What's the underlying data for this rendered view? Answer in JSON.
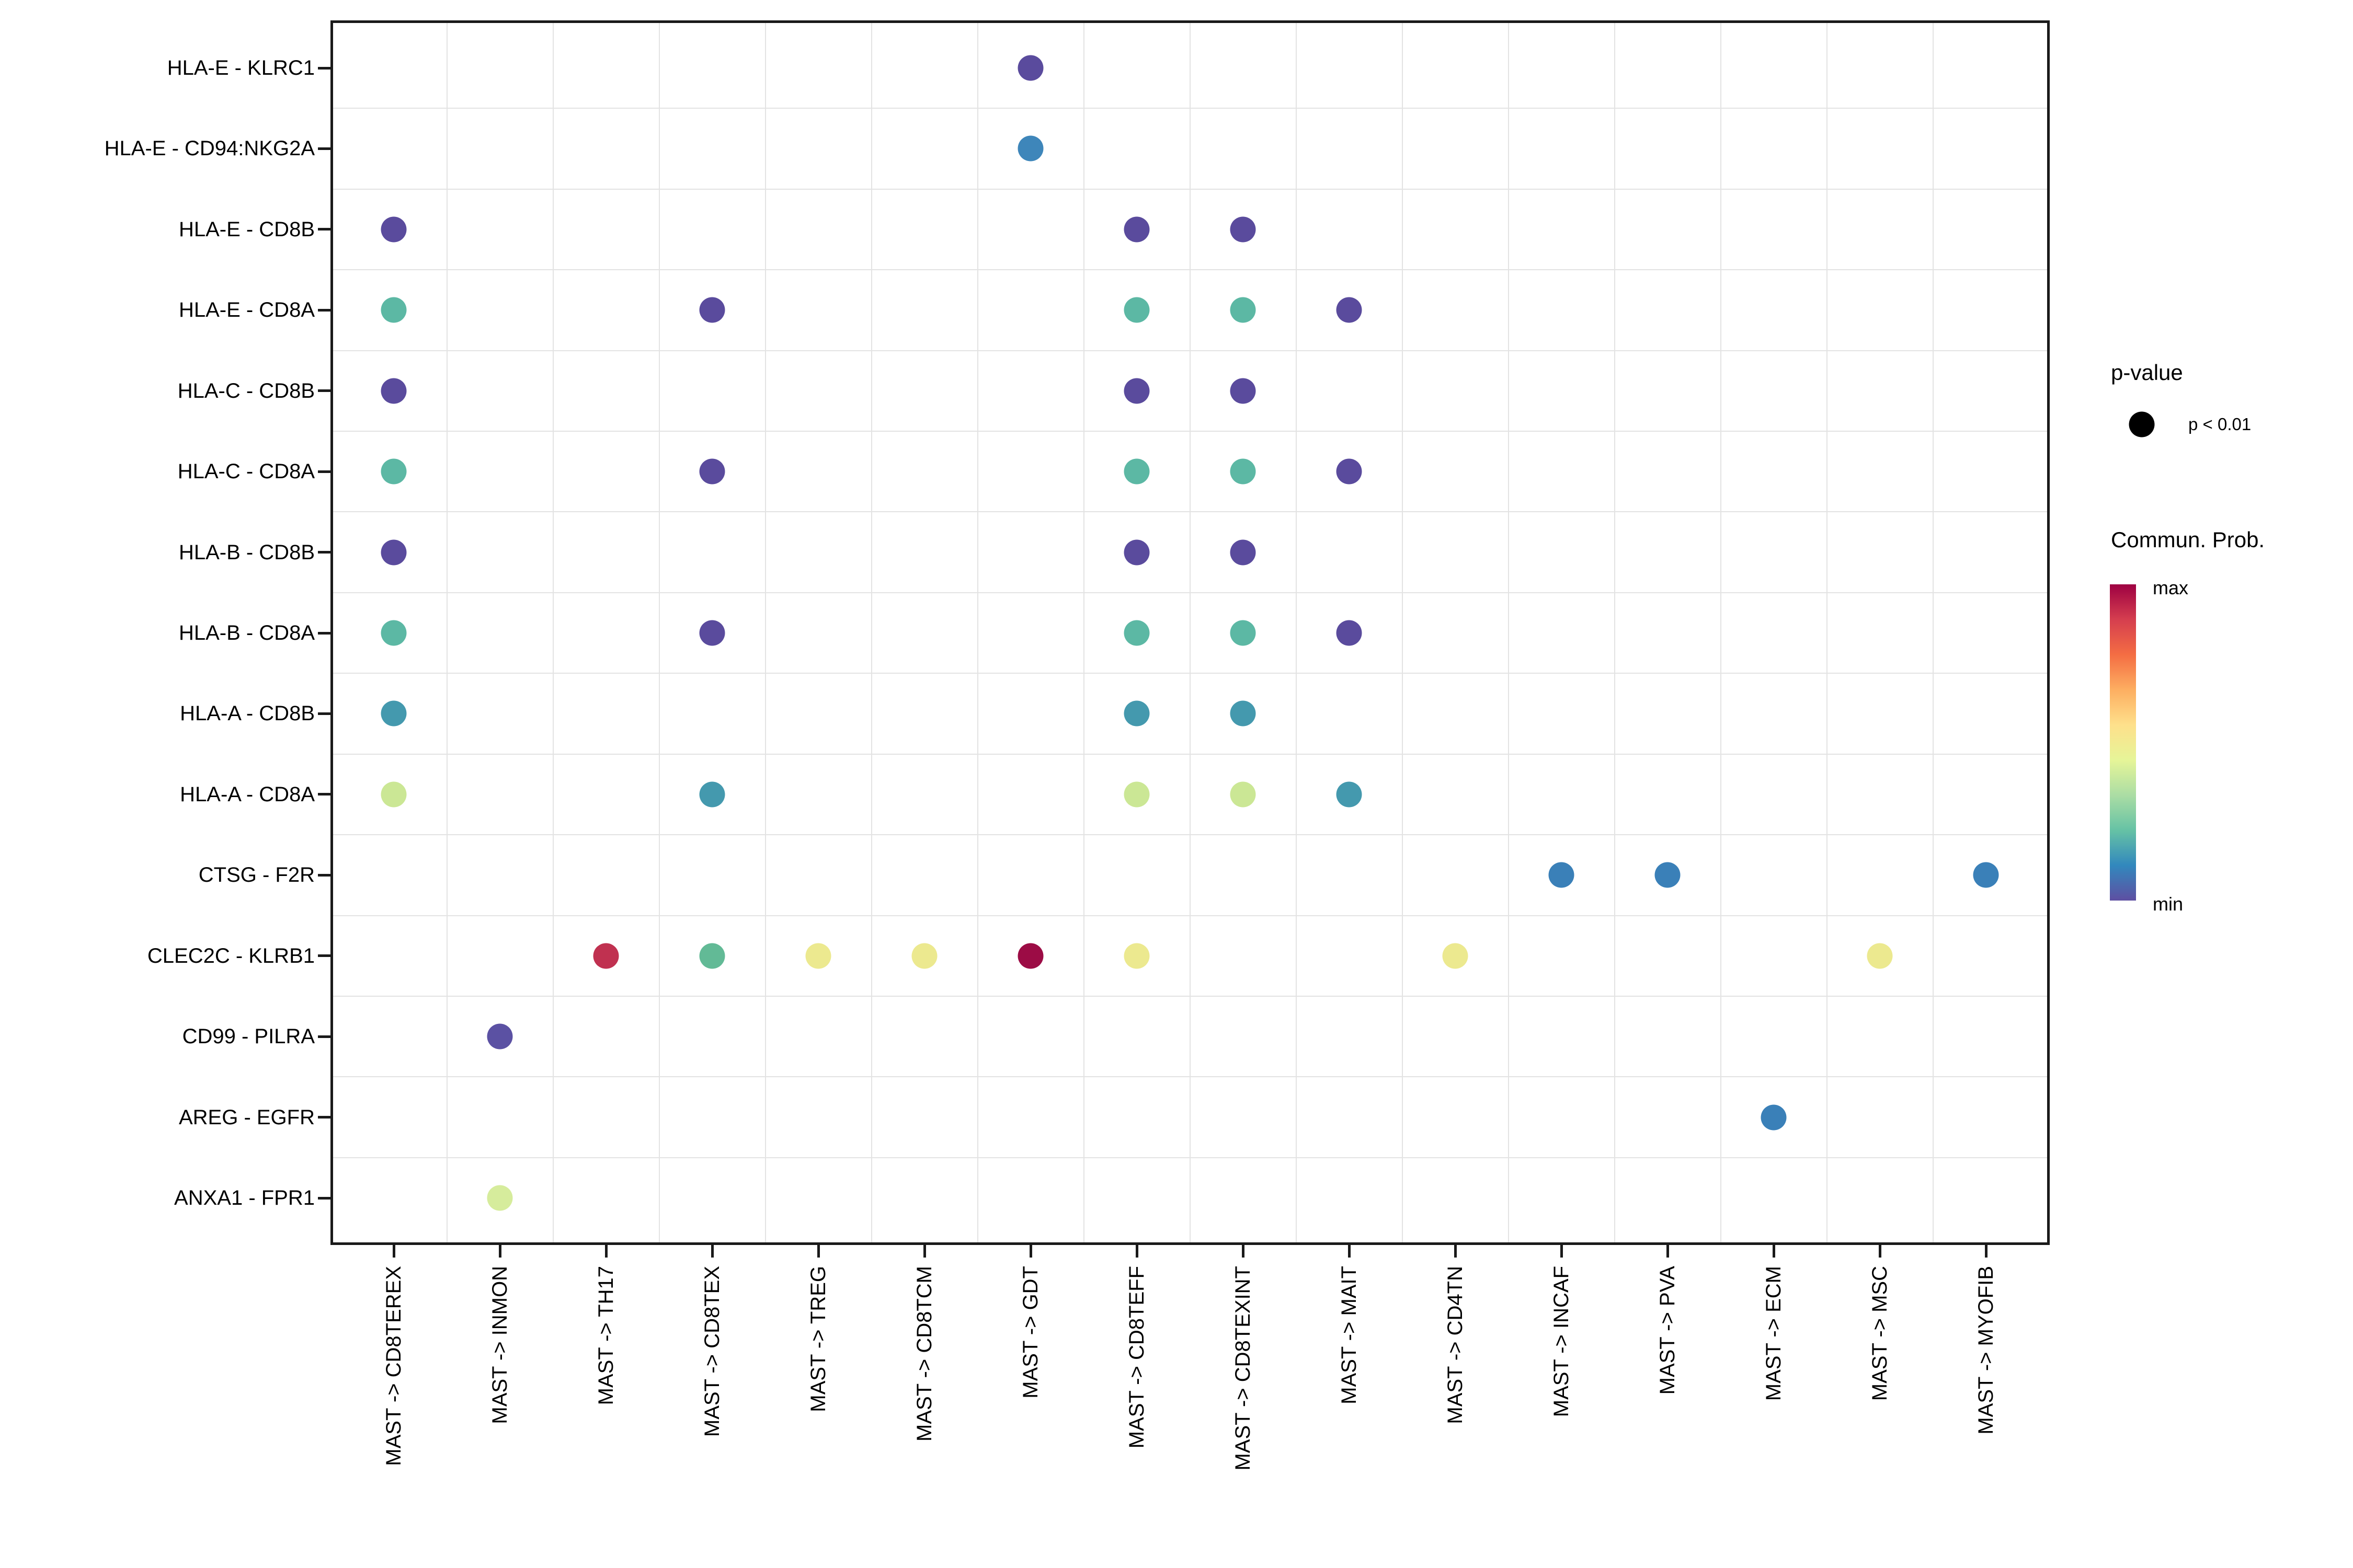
{
  "chart_data": {
    "type": "scatter",
    "subtype": "bubble-dotplot",
    "title": "",
    "xlabel": "",
    "ylabel": "",
    "grid": "minor-only",
    "legend_position": "right",
    "x_categories": [
      "MAST -> CD8TEREX",
      "MAST -> INMON",
      "MAST -> TH17",
      "MAST -> CD8TEX",
      "MAST -> TREG",
      "MAST -> CD8TCM",
      "MAST -> GDT",
      "MAST -> CD8TEFF",
      "MAST -> CD8TEXINT",
      "MAST -> MAIT",
      "MAST -> CD4TN",
      "MAST -> INCAF",
      "MAST -> PVA",
      "MAST -> ECM",
      "MAST -> MSC",
      "MAST -> MYOFIB"
    ],
    "y_categories": [
      "HLA-E - KLRC1",
      "HLA-E - CD94:NKG2A",
      "HLA-E - CD8B",
      "HLA-E - CD8A",
      "HLA-C - CD8B",
      "HLA-C - CD8A",
      "HLA-B - CD8B",
      "HLA-B - CD8A",
      "HLA-A - CD8B",
      "HLA-A - CD8A",
      "CTSG - F2R",
      "CLEC2C - KLRB1",
      "CD99 - PILRA",
      "AREG - EGFR",
      "ANXA1 - FPR1"
    ],
    "points": [
      {
        "x": "MAST -> GDT",
        "y": "HLA-E - KLRC1",
        "color": "#5a4b9d",
        "p": "p < 0.01"
      },
      {
        "x": "MAST -> GDT",
        "y": "HLA-E - CD94:NKG2A",
        "color": "#3e86ba",
        "p": "p < 0.01"
      },
      {
        "x": "MAST -> CD8TEREX",
        "y": "HLA-E - CD8B",
        "color": "#5a4b9d",
        "p": "p < 0.01"
      },
      {
        "x": "MAST -> CD8TEFF",
        "y": "HLA-E - CD8B",
        "color": "#5a4b9d",
        "p": "p < 0.01"
      },
      {
        "x": "MAST -> CD8TEXINT",
        "y": "HLA-E - CD8B",
        "color": "#5a4b9d",
        "p": "p < 0.01"
      },
      {
        "x": "MAST -> CD8TEREX",
        "y": "HLA-E - CD8A",
        "color": "#5cb8a4",
        "p": "p < 0.01"
      },
      {
        "x": "MAST -> CD8TEX",
        "y": "HLA-E - CD8A",
        "color": "#5a4b9d",
        "p": "p < 0.01"
      },
      {
        "x": "MAST -> CD8TEFF",
        "y": "HLA-E - CD8A",
        "color": "#5cb8a4",
        "p": "p < 0.01"
      },
      {
        "x": "MAST -> CD8TEXINT",
        "y": "HLA-E - CD8A",
        "color": "#5cb8a4",
        "p": "p < 0.01"
      },
      {
        "x": "MAST -> MAIT",
        "y": "HLA-E - CD8A",
        "color": "#5a4b9d",
        "p": "p < 0.01"
      },
      {
        "x": "MAST -> CD8TEREX",
        "y": "HLA-C - CD8B",
        "color": "#5a4b9d",
        "p": "p < 0.01"
      },
      {
        "x": "MAST -> CD8TEFF",
        "y": "HLA-C - CD8B",
        "color": "#5a4b9d",
        "p": "p < 0.01"
      },
      {
        "x": "MAST -> CD8TEXINT",
        "y": "HLA-C - CD8B",
        "color": "#5a4b9d",
        "p": "p < 0.01"
      },
      {
        "x": "MAST -> CD8TEREX",
        "y": "HLA-C - CD8A",
        "color": "#5cb8a4",
        "p": "p < 0.01"
      },
      {
        "x": "MAST -> CD8TEX",
        "y": "HLA-C - CD8A",
        "color": "#5a4b9d",
        "p": "p < 0.01"
      },
      {
        "x": "MAST -> CD8TEFF",
        "y": "HLA-C - CD8A",
        "color": "#5cb8a4",
        "p": "p < 0.01"
      },
      {
        "x": "MAST -> CD8TEXINT",
        "y": "HLA-C - CD8A",
        "color": "#5cb8a4",
        "p": "p < 0.01"
      },
      {
        "x": "MAST -> MAIT",
        "y": "HLA-C - CD8A",
        "color": "#5a4b9d",
        "p": "p < 0.01"
      },
      {
        "x": "MAST -> CD8TEREX",
        "y": "HLA-B - CD8B",
        "color": "#5a4b9d",
        "p": "p < 0.01"
      },
      {
        "x": "MAST -> CD8TEFF",
        "y": "HLA-B - CD8B",
        "color": "#5a4b9d",
        "p": "p < 0.01"
      },
      {
        "x": "MAST -> CD8TEXINT",
        "y": "HLA-B - CD8B",
        "color": "#5a4b9d",
        "p": "p < 0.01"
      },
      {
        "x": "MAST -> CD8TEREX",
        "y": "HLA-B - CD8A",
        "color": "#5cb8a4",
        "p": "p < 0.01"
      },
      {
        "x": "MAST -> CD8TEX",
        "y": "HLA-B - CD8A",
        "color": "#5a4b9d",
        "p": "p < 0.01"
      },
      {
        "x": "MAST -> CD8TEFF",
        "y": "HLA-B - CD8A",
        "color": "#5cb8a4",
        "p": "p < 0.01"
      },
      {
        "x": "MAST -> CD8TEXINT",
        "y": "HLA-B - CD8A",
        "color": "#5cb8a4",
        "p": "p < 0.01"
      },
      {
        "x": "MAST -> MAIT",
        "y": "HLA-B - CD8A",
        "color": "#5a4b9d",
        "p": "p < 0.01"
      },
      {
        "x": "MAST -> CD8TEREX",
        "y": "HLA-A - CD8B",
        "color": "#4499ae",
        "p": "p < 0.01"
      },
      {
        "x": "MAST -> CD8TEFF",
        "y": "HLA-A - CD8B",
        "color": "#4499ae",
        "p": "p < 0.01"
      },
      {
        "x": "MAST -> CD8TEXINT",
        "y": "HLA-A - CD8B",
        "color": "#4499ae",
        "p": "p < 0.01"
      },
      {
        "x": "MAST -> CD8TEREX",
        "y": "HLA-A - CD8A",
        "color": "#cbe795",
        "p": "p < 0.01"
      },
      {
        "x": "MAST -> CD8TEX",
        "y": "HLA-A - CD8A",
        "color": "#4499ae",
        "p": "p < 0.01"
      },
      {
        "x": "MAST -> CD8TEFF",
        "y": "HLA-A - CD8A",
        "color": "#cbe795",
        "p": "p < 0.01"
      },
      {
        "x": "MAST -> CD8TEXINT",
        "y": "HLA-A - CD8A",
        "color": "#cbe795",
        "p": "p < 0.01"
      },
      {
        "x": "MAST -> MAIT",
        "y": "HLA-A - CD8A",
        "color": "#4499ae",
        "p": "p < 0.01"
      },
      {
        "x": "MAST -> INCAF",
        "y": "CTSG - F2R",
        "color": "#3a80b8",
        "p": "p < 0.01"
      },
      {
        "x": "MAST -> PVA",
        "y": "CTSG - F2R",
        "color": "#3a80b8",
        "p": "p < 0.01"
      },
      {
        "x": "MAST -> MYOFIB",
        "y": "CTSG - F2R",
        "color": "#3a80b8",
        "p": "p < 0.01"
      },
      {
        "x": "MAST -> TH17",
        "y": "CLEC2C - KLRB1",
        "color": "#c03150",
        "p": "p < 0.01"
      },
      {
        "x": "MAST -> CD8TEX",
        "y": "CLEC2C - KLRB1",
        "color": "#62ba96",
        "p": "p < 0.01"
      },
      {
        "x": "MAST -> TREG",
        "y": "CLEC2C - KLRB1",
        "color": "#ece98f",
        "p": "p < 0.01"
      },
      {
        "x": "MAST -> CD8TCM",
        "y": "CLEC2C - KLRB1",
        "color": "#ece98f",
        "p": "p < 0.01"
      },
      {
        "x": "MAST -> GDT",
        "y": "CLEC2C - KLRB1",
        "color": "#9c0c45",
        "p": "p < 0.01"
      },
      {
        "x": "MAST -> CD8TEFF",
        "y": "CLEC2C - KLRB1",
        "color": "#ece98f",
        "p": "p < 0.01"
      },
      {
        "x": "MAST -> CD4TN",
        "y": "CLEC2C - KLRB1",
        "color": "#ece98f",
        "p": "p < 0.01"
      },
      {
        "x": "MAST -> MSC",
        "y": "CLEC2C - KLRB1",
        "color": "#ece98f",
        "p": "p < 0.01"
      },
      {
        "x": "MAST -> INMON",
        "y": "CD99 - PILRA",
        "color": "#5b51a3",
        "p": "p < 0.01"
      },
      {
        "x": "MAST -> ECM",
        "y": "AREG - EGFR",
        "color": "#3a80b8",
        "p": "p < 0.01"
      },
      {
        "x": "MAST -> INMON",
        "y": "ANXA1 - FPR1",
        "color": "#d6ec9c",
        "p": "p < 0.01"
      }
    ],
    "legend_pvalue": {
      "title": "p-value",
      "items": [
        {
          "label": "p < 0.01",
          "color": "#000000"
        }
      ]
    },
    "legend_colorbar": {
      "title": "Commun. Prob.",
      "max_label": "max",
      "min_label": "min",
      "gradient_top_to_bottom": [
        "#9e0142",
        "#d53e4f",
        "#f46d43",
        "#fdae61",
        "#fee08b",
        "#e6f598",
        "#abdda4",
        "#66c2a5",
        "#3288bd",
        "#5e4fa2"
      ]
    }
  }
}
